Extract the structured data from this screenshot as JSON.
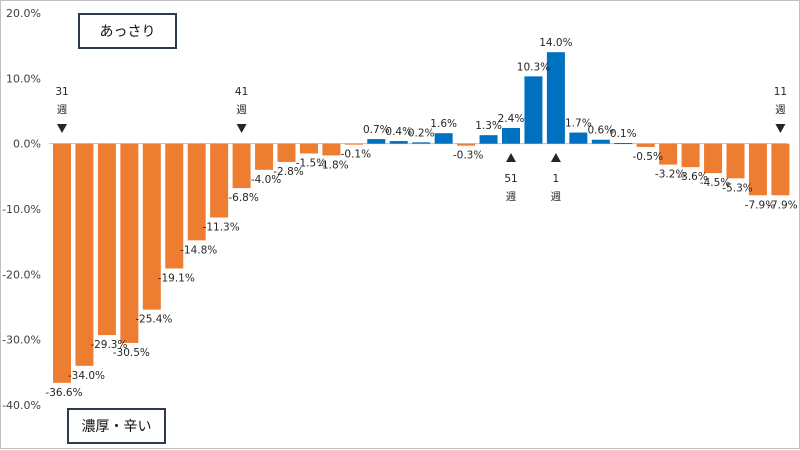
{
  "chart_data": {
    "type": "bar",
    "ylim": [
      -40,
      20
    ],
    "yticks": [
      "20.0%",
      "10.0%",
      "0.0%",
      "-10.0%",
      "-20.0%",
      "-30.0%",
      "-40.0%"
    ],
    "grid": false,
    "positive_color": "#0070c0",
    "negative_color": "#ed7d31",
    "values": [
      -36.6,
      -34.0,
      -29.3,
      -30.5,
      -25.4,
      -19.1,
      -14.8,
      -11.3,
      -6.8,
      -4.0,
      -2.8,
      -1.5,
      -1.8,
      -0.1,
      0.7,
      0.4,
      0.2,
      1.6,
      -0.3,
      1.3,
      2.4,
      10.3,
      14.0,
      1.7,
      0.6,
      0.1,
      -0.5,
      -3.2,
      -3.6,
      -4.5,
      -5.3,
      -7.9,
      -7.9
    ],
    "data_labels": [
      "-36.6%",
      "-34.0%",
      "-29.3%",
      "-30.5%",
      "-25.4%",
      "-19.1%",
      "-14.8%",
      "-11.3%",
      "-6.8%",
      "-4.0%",
      "-2.8%",
      "-1.5%",
      "-1.8%",
      "-0.1%",
      "0.7%",
      "0.4%",
      "0.2%",
      "1.6%",
      "-0.3%",
      "1.3%",
      "2.4%",
      "10.3%",
      "14.0%",
      "1.7%",
      "0.6%",
      "0.1%",
      "-0.5%",
      "-3.2%",
      "-3.6%",
      "-4.5%",
      "-5.3%",
      "-7.9%",
      "-7.9%"
    ],
    "week_markers": [
      {
        "index": 0,
        "number": "31",
        "unit": "週",
        "direction": "down"
      },
      {
        "index": 8,
        "number": "41",
        "unit": "週",
        "direction": "down"
      },
      {
        "index": 20,
        "number": "51",
        "unit": "週",
        "direction": "up"
      },
      {
        "index": 22,
        "number": "1",
        "unit": "週",
        "direction": "up"
      },
      {
        "index": 32,
        "number": "11",
        "unit": "週",
        "direction": "down"
      }
    ],
    "legend": {
      "top": "あっさり",
      "bottom": "濃厚・辛い"
    }
  }
}
